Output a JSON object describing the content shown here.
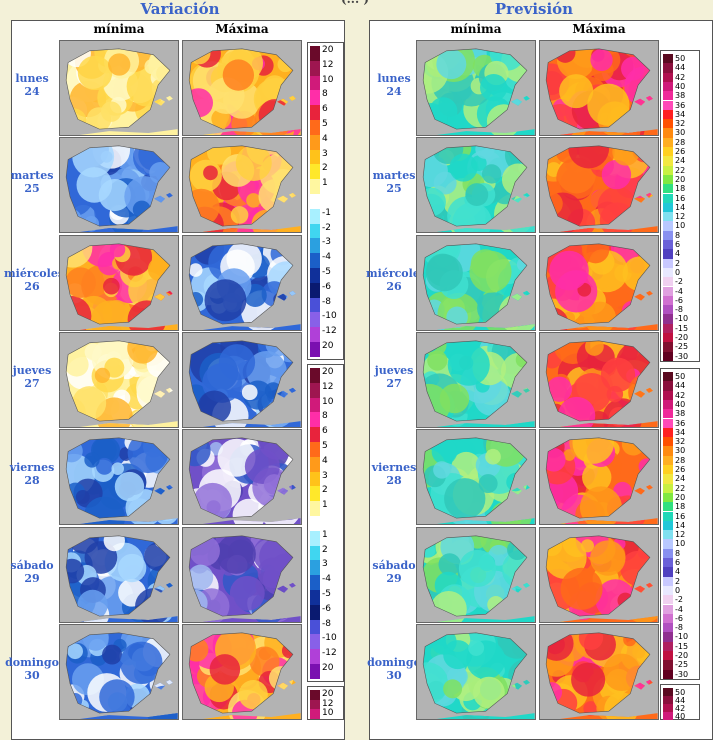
{
  "top_titles": {
    "variacion": "Variación",
    "prevision": "Previsión"
  },
  "partial_header": "(... )",
  "columns": {
    "min": "mínima",
    "max": "Máxima"
  },
  "days": [
    {
      "name": "lunes",
      "num": "24"
    },
    {
      "name": "martes",
      "num": "25"
    },
    {
      "name": "miércoles",
      "num": "26"
    },
    {
      "name": "jueves",
      "num": "27"
    },
    {
      "name": "viernes",
      "num": "28"
    },
    {
      "name": "sábado",
      "num": "29"
    },
    {
      "name": "domingo",
      "num": "30"
    }
  ],
  "legend_variation": {
    "labels": [
      "20",
      "12",
      "10",
      "8",
      "6",
      "5",
      "4",
      "3",
      "2",
      "1",
      "",
      "-1",
      "-2",
      "-3",
      "-4",
      "-5",
      "-6",
      "-8",
      "-10",
      "-12",
      "20"
    ],
    "colors": [
      "#6a0a2a",
      "#9e1650",
      "#d01a7a",
      "#ff2ea8",
      "#e8233c",
      "#ff6a1a",
      "#ff9a1a",
      "#ffc21a",
      "#ffe82a",
      "#fff7a0",
      "#ffffff",
      "#a8f0ff",
      "#40d6f0",
      "#2ba0e0",
      "#1b5fc8",
      "#10309a",
      "#0a1a70",
      "#4a50d8",
      "#8860e8",
      "#b040d8",
      "#7a10b0"
    ]
  },
  "legend_variation_2": {
    "labels": [
      "20",
      "12",
      "10",
      "8",
      "6",
      "5",
      "4",
      "3",
      "2",
      "1",
      "",
      "1",
      "2",
      "3",
      "-4",
      "-5",
      "-6",
      "-8",
      "-10",
      "-12",
      "20"
    ],
    "colors": [
      "#6a0a2a",
      "#9e1650",
      "#d01a7a",
      "#ff2ea8",
      "#e8233c",
      "#ff6a1a",
      "#ff9a1a",
      "#ffc21a",
      "#ffe82a",
      "#fff7a0",
      "#ffffff",
      "#a8f0ff",
      "#40d6f0",
      "#2ba0e0",
      "#1b5fc8",
      "#10309a",
      "#0a1a70",
      "#4a50d8",
      "#8860e8",
      "#b040d8",
      "#7a10b0"
    ]
  },
  "legend_variation_3": {
    "labels": [
      "20",
      "12",
      "10"
    ],
    "colors": [
      "#6a0a2a",
      "#9e1650",
      "#d01a7a"
    ]
  },
  "legend_prevision": {
    "labels": [
      "50",
      "44",
      "42",
      "40",
      "38",
      "36",
      "34",
      "32",
      "30",
      "28",
      "26",
      "24",
      "22",
      "20",
      "18",
      "16",
      "14",
      "12",
      "10",
      "8",
      "6",
      "4",
      "2",
      "0",
      "-2",
      "-4",
      "-6",
      "-8",
      "-10",
      "-15",
      "-20",
      "-25",
      "-30"
    ],
    "colors": [
      "#5a0a20",
      "#8a0f3c",
      "#b0104f",
      "#d01a7a",
      "#f02a9a",
      "#ff4ab8",
      "#ff2020",
      "#ff5000",
      "#ff8a10",
      "#ffae20",
      "#ffd020",
      "#f2e840",
      "#c8f040",
      "#80e840",
      "#30e080",
      "#20d8b8",
      "#20c8d8",
      "#80e0f0",
      "#b8c8ff",
      "#8890f0",
      "#6a60d8",
      "#5040c0",
      "#c8c8ff",
      "#e8e8ff",
      "#f0d0f0",
      "#e0a0e0",
      "#d070d0",
      "#b050c0",
      "#903090",
      "#b02060",
      "#c01040",
      "#801030",
      "#600020"
    ]
  },
  "legend_prevision_3": {
    "labels": [
      "50",
      "44",
      "42",
      "40"
    ],
    "colors": [
      "#5a0a20",
      "#8a0f3c",
      "#b0104f",
      "#d01a7a"
    ]
  },
  "map_palettes": {
    "var_min": [
      "#fff2a0",
      "#ffd84a",
      "#ffb52e",
      "#ffe066",
      "#ffffff",
      "#fff9c8"
    ],
    "var_max": [
      "#ffb020",
      "#ff8020",
      "#ff2ea8",
      "#e8233c",
      "#ffd040",
      "#ffe070"
    ],
    "var_cool": [
      "#3068d8",
      "#1b5fc8",
      "#6aa0f0",
      "#ffffff",
      "#a8d8ff",
      "#2040a8"
    ],
    "var_purple": [
      "#7050c8",
      "#9070d8",
      "#5040b0",
      "#3058c8",
      "#ffffff",
      "#a0b8f0"
    ],
    "prev_min": [
      "#20d8c8",
      "#40e0d0",
      "#30c8b8",
      "#80e060",
      "#b0f080",
      "#60d8e0"
    ],
    "prev_max": [
      "#ff6a1a",
      "#ff9a1a",
      "#ffc020",
      "#ff2ea8",
      "#ff4040",
      "#e8233c"
    ]
  }
}
